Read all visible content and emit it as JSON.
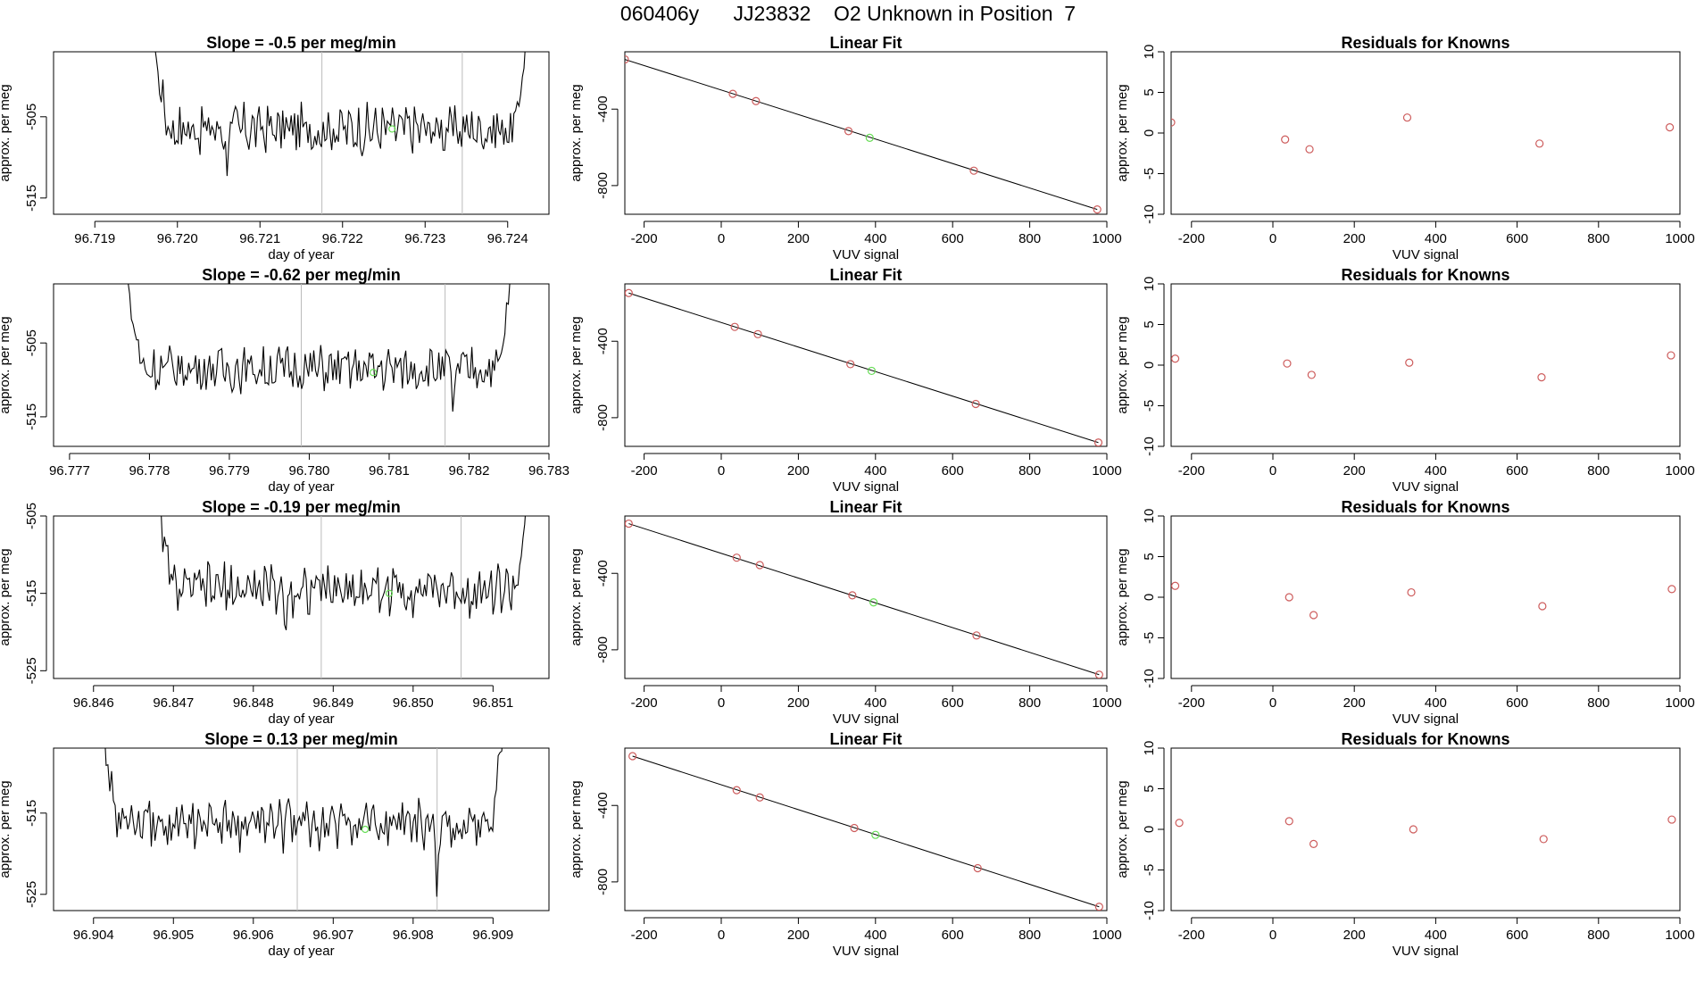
{
  "title": "060406y      JJ23832    O2 Unknown in Position  7",
  "colors": {
    "line": "#000000",
    "known": "#cd5c5c",
    "unknown": "#66dd55",
    "vline": "#bbbbbb"
  },
  "chart_data": [
    {
      "type": "line",
      "title": "Slope =  -0.5  per meg/min",
      "xlabel": "day of year",
      "ylabel": "approx. per meg",
      "xlim": [
        96.7185,
        96.7245
      ],
      "xticks": [
        "96.719",
        "96.720",
        "96.721",
        "96.722",
        "96.723",
        "96.724"
      ],
      "ylim": [
        -517,
        -497
      ],
      "yticks": [
        -505,
        -515
      ],
      "trace_x_range": [
        96.7196,
        96.7243
      ],
      "trace_mean": -506.5,
      "trace_amplitude": 2.6,
      "trace_spikes": [
        {
          "x": 96.7206,
          "y": -512.5
        }
      ],
      "vlines": [
        96.72175,
        96.72345
      ],
      "unknown_point": {
        "x": 96.7226,
        "y": -506.5
      }
    },
    {
      "type": "line",
      "title": "Linear Fit",
      "xlabel": "VUV signal",
      "ylabel": "approx. per meg",
      "xlim": [
        -250,
        1000
      ],
      "xticks": [
        -200,
        0,
        200,
        400,
        600,
        800,
        1000
      ],
      "ylim": [
        -950,
        -100
      ],
      "yticks": [
        -400,
        -800
      ],
      "known_points": [
        {
          "x": -250,
          "y": -140
        },
        {
          "x": 30,
          "y": -320
        },
        {
          "x": 90,
          "y": -358
        },
        {
          "x": 330,
          "y": -515
        },
        {
          "x": 655,
          "y": -722
        },
        {
          "x": 975,
          "y": -925
        }
      ],
      "unknown_point": {
        "x": 385,
        "y": -550
      },
      "fit": [
        [
          -250,
          -140
        ],
        [
          975,
          -925
        ]
      ]
    },
    {
      "type": "scatter",
      "title": "Residuals for Knowns",
      "xlabel": "VUV signal",
      "ylabel": "approx. per meg",
      "xlim": [
        -250,
        1000
      ],
      "xticks": [
        -200,
        0,
        200,
        400,
        600,
        800,
        1000
      ],
      "ylim": [
        -10,
        10
      ],
      "yticks": [
        10,
        5,
        0,
        -5,
        -10
      ],
      "points": [
        {
          "x": -250,
          "y": 1.3
        },
        {
          "x": 30,
          "y": -0.8
        },
        {
          "x": 90,
          "y": -2.0
        },
        {
          "x": 330,
          "y": 1.9
        },
        {
          "x": 655,
          "y": -1.3
        },
        {
          "x": 975,
          "y": 0.7
        }
      ]
    },
    {
      "type": "line",
      "title": "Slope =  -0.62  per meg/min",
      "xlabel": "day of year",
      "ylabel": "approx. per meg",
      "xlim": [
        96.7768,
        96.783
      ],
      "xticks": [
        "96.777",
        "96.778",
        "96.779",
        "96.780",
        "96.781",
        "96.782",
        "96.783"
      ],
      "ylim": [
        -519,
        -497
      ],
      "yticks": [
        -505,
        -515
      ],
      "trace_x_range": [
        96.7776,
        96.7826
      ],
      "trace_mean": -508.5,
      "trace_amplitude": 2.6,
      "trace_spikes": [
        {
          "x": 96.7818,
          "y": -515.5
        }
      ],
      "vlines": [
        96.7799,
        96.7817
      ],
      "unknown_point": {
        "x": 96.7808,
        "y": -509
      }
    },
    {
      "type": "line",
      "title": "Linear Fit",
      "xlabel": "VUV signal",
      "ylabel": "approx. per meg",
      "xlim": [
        -250,
        1000
      ],
      "xticks": [
        -200,
        0,
        200,
        400,
        600,
        800,
        1000
      ],
      "ylim": [
        -950,
        -100
      ],
      "yticks": [
        -400,
        -800
      ],
      "known_points": [
        {
          "x": -240,
          "y": -148
        },
        {
          "x": 35,
          "y": -325
        },
        {
          "x": 95,
          "y": -363
        },
        {
          "x": 335,
          "y": -520
        },
        {
          "x": 660,
          "y": -728
        },
        {
          "x": 978,
          "y": -930
        }
      ],
      "unknown_point": {
        "x": 390,
        "y": -555
      },
      "fit": [
        [
          -240,
          -148
        ],
        [
          978,
          -930
        ]
      ]
    },
    {
      "type": "scatter",
      "title": "Residuals for Knowns",
      "xlabel": "VUV signal",
      "ylabel": "approx. per meg",
      "xlim": [
        -250,
        1000
      ],
      "xticks": [
        -200,
        0,
        200,
        400,
        600,
        800,
        1000
      ],
      "ylim": [
        -10,
        10
      ],
      "yticks": [
        10,
        5,
        0,
        -5,
        -10
      ],
      "points": [
        {
          "x": -240,
          "y": 0.8
        },
        {
          "x": 35,
          "y": 0.2
        },
        {
          "x": 95,
          "y": -1.2
        },
        {
          "x": 335,
          "y": 0.3
        },
        {
          "x": 660,
          "y": -1.5
        },
        {
          "x": 978,
          "y": 1.2
        }
      ]
    },
    {
      "type": "line",
      "title": "Slope =  -0.19  per meg/min",
      "xlabel": "day of year",
      "ylabel": "approx. per meg",
      "xlim": [
        96.8455,
        96.8517
      ],
      "xticks": [
        "96.846",
        "96.847",
        "96.848",
        "96.849",
        "96.850",
        "96.851"
      ],
      "ylim": [
        -526,
        -505
      ],
      "yticks": [
        -505,
        -515,
        -525
      ],
      "trace_x_range": [
        96.8467,
        96.8515
      ],
      "trace_mean": -514.5,
      "trace_amplitude": 2.8,
      "trace_spikes": [
        {
          "x": 96.8484,
          "y": -521.5
        }
      ],
      "vlines": [
        96.84885,
        96.8506
      ],
      "unknown_point": {
        "x": 96.8497,
        "y": -515
      }
    },
    {
      "type": "line",
      "title": "Linear Fit",
      "xlabel": "VUV signal",
      "ylabel": "approx. per meg",
      "xlim": [
        -250,
        1000
      ],
      "xticks": [
        -200,
        0,
        200,
        400,
        600,
        800,
        1000
      ],
      "ylim": [
        -950,
        -100
      ],
      "yticks": [
        -400,
        -800
      ],
      "known_points": [
        {
          "x": -240,
          "y": -140
        },
        {
          "x": 40,
          "y": -318
        },
        {
          "x": 100,
          "y": -357
        },
        {
          "x": 340,
          "y": -515
        },
        {
          "x": 662,
          "y": -725
        },
        {
          "x": 980,
          "y": -930
        }
      ],
      "unknown_point": {
        "x": 395,
        "y": -552
      },
      "fit": [
        [
          -240,
          -140
        ],
        [
          980,
          -930
        ]
      ]
    },
    {
      "type": "scatter",
      "title": "Residuals for Knowns",
      "xlabel": "VUV signal",
      "ylabel": "approx. per meg",
      "xlim": [
        -250,
        1000
      ],
      "xticks": [
        -200,
        0,
        200,
        400,
        600,
        800,
        1000
      ],
      "ylim": [
        -10,
        10
      ],
      "yticks": [
        10,
        5,
        0,
        -5,
        -10
      ],
      "points": [
        {
          "x": -240,
          "y": 1.4
        },
        {
          "x": 40,
          "y": 0.0
        },
        {
          "x": 100,
          "y": -2.2
        },
        {
          "x": 340,
          "y": 0.6
        },
        {
          "x": 662,
          "y": -1.1
        },
        {
          "x": 980,
          "y": 1.0
        }
      ]
    },
    {
      "type": "line",
      "title": "Slope =  0.13  per meg/min",
      "xlabel": "day of year",
      "ylabel": "approx. per meg",
      "xlim": [
        96.9035,
        96.9097
      ],
      "xticks": [
        "96.904",
        "96.905",
        "96.906",
        "96.907",
        "96.908",
        "96.909"
      ],
      "ylim": [
        -527,
        -507
      ],
      "yticks": [
        -515,
        -525
      ],
      "trace_x_range": [
        96.904,
        96.9092
      ],
      "trace_mean": -516.5,
      "trace_amplitude": 2.6,
      "trace_spikes": [
        {
          "x": 96.9083,
          "y": -527
        }
      ],
      "vlines": [
        96.90655,
        96.9083
      ],
      "unknown_point": {
        "x": 96.9074,
        "y": -517
      }
    },
    {
      "type": "line",
      "title": "Linear Fit",
      "xlabel": "VUV signal",
      "ylabel": "approx. per meg",
      "xlim": [
        -250,
        1000
      ],
      "xticks": [
        -200,
        0,
        200,
        400,
        600,
        800,
        1000
      ],
      "ylim": [
        -950,
        -100
      ],
      "yticks": [
        -400,
        -800
      ],
      "known_points": [
        {
          "x": -230,
          "y": -142
        },
        {
          "x": 40,
          "y": -320
        },
        {
          "x": 100,
          "y": -358
        },
        {
          "x": 345,
          "y": -518
        },
        {
          "x": 665,
          "y": -728
        },
        {
          "x": 980,
          "y": -930
        }
      ],
      "unknown_point": {
        "x": 400,
        "y": -554
      },
      "fit": [
        [
          -230,
          -142
        ],
        [
          980,
          -930
        ]
      ]
    },
    {
      "type": "scatter",
      "title": "Residuals for Knowns",
      "xlabel": "VUV signal",
      "ylabel": "approx. per meg",
      "xlim": [
        -250,
        1000
      ],
      "xticks": [
        -200,
        0,
        200,
        400,
        600,
        800,
        1000
      ],
      "ylim": [
        -10,
        10
      ],
      "yticks": [
        10,
        5,
        0,
        -5,
        -10
      ],
      "points": [
        {
          "x": -230,
          "y": 0.8
        },
        {
          "x": 40,
          "y": 1.0
        },
        {
          "x": 100,
          "y": -1.8
        },
        {
          "x": 345,
          "y": 0.0
        },
        {
          "x": 665,
          "y": -1.2
        },
        {
          "x": 980,
          "y": 1.2
        }
      ]
    }
  ]
}
